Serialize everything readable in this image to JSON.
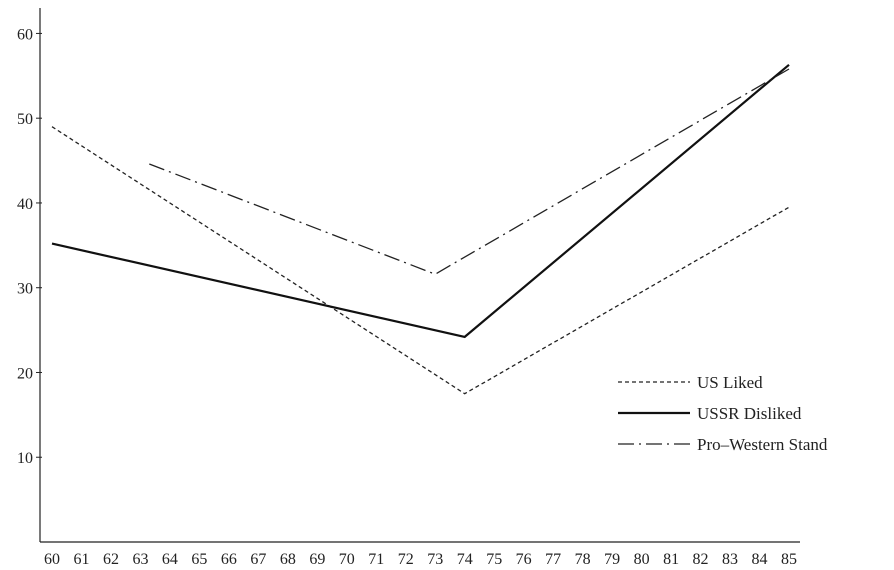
{
  "chart_data": {
    "type": "line",
    "title": "",
    "xlabel": "",
    "ylabel": "",
    "xlim": [
      60,
      85
    ],
    "ylim": [
      0,
      63
    ],
    "x_ticks": [
      "60",
      "61",
      "62",
      "63",
      "64",
      "65",
      "66",
      "67",
      "68",
      "69",
      "70",
      "71",
      "72",
      "73",
      "74",
      "75",
      "76",
      "77",
      "78",
      "79",
      "80",
      "81",
      "82",
      "83",
      "84",
      "85"
    ],
    "y_ticks": [
      10,
      20,
      30,
      40,
      50,
      60
    ],
    "grid": false,
    "legend_position": "right",
    "series": [
      {
        "name": "US Liked",
        "style": "dashed",
        "color": "#222222",
        "points": [
          [
            60,
            49
          ],
          [
            74,
            17.5
          ],
          [
            85,
            39.5
          ]
        ]
      },
      {
        "name": "USSR Disliked",
        "style": "solid",
        "color": "#111111",
        "points": [
          [
            60,
            35.2
          ],
          [
            74,
            24.2
          ],
          [
            85,
            56.3
          ]
        ]
      },
      {
        "name": "Pro–Western Stand",
        "style": "dashdot",
        "color": "#222222",
        "points": [
          [
            63.3,
            44.6
          ],
          [
            73,
            31.6
          ],
          [
            85,
            55.8
          ]
        ]
      }
    ]
  }
}
